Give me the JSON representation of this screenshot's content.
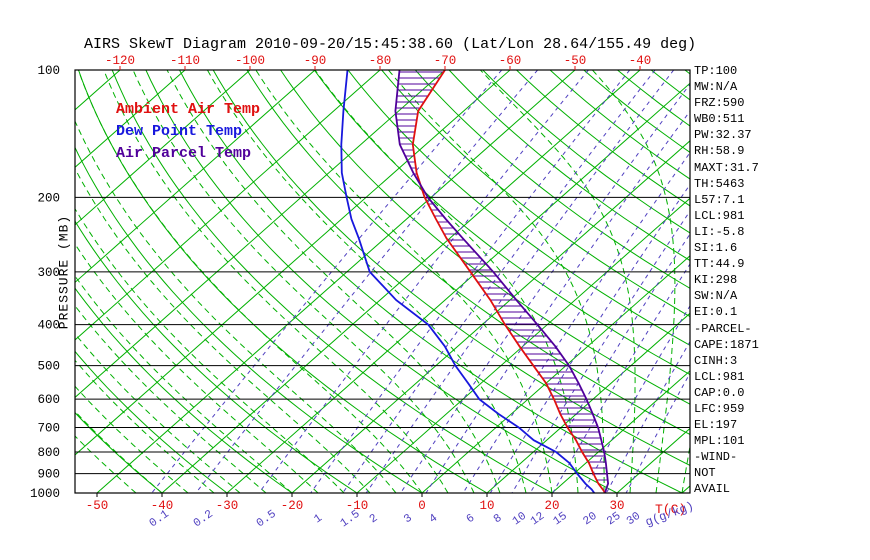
{
  "title": "AIRS SkewT Diagram 2010-09-20/15:45:38.60 (Lat/Lon 28.64/155.49 deg)",
  "legend": [
    {
      "label": "Ambient Air Temp",
      "color": "#e01010"
    },
    {
      "label": "Dew Point Temp",
      "color": "#1818dd"
    },
    {
      "label": "Air Parcel Temp",
      "color": "#50009b"
    }
  ],
  "axes": {
    "pressure_title": "PRESSURE (MB)",
    "pressure_ticks": [
      100,
      200,
      300,
      400,
      500,
      600,
      700,
      800,
      900,
      1000
    ],
    "top_temp_ticks": [
      -120,
      -110,
      -100,
      -90,
      -80,
      -70,
      -60,
      -50,
      -40
    ],
    "bottom_temp_ticks": [
      -50,
      -40,
      -30,
      -20,
      -10,
      0,
      10,
      20,
      30
    ],
    "temp_unit": "T(C)",
    "mixing_unit": "g(g/kg)",
    "mixing_ratio_ticks": [
      0.1,
      0.2,
      0.5,
      1,
      1.5,
      2,
      3,
      4,
      6,
      8,
      10,
      12,
      15,
      20,
      25,
      30
    ]
  },
  "stats": [
    "TP:100",
    "MW:N/A",
    "FRZ:590",
    "WB0:511",
    "PW:32.37",
    "RH:58.9",
    "MAXT:31.7",
    "TH:5463",
    "L57:7.1",
    "LCL:981",
    "LI:-5.8",
    "SI:1.6",
    "TT:44.9",
    "KI:298",
    "SW:N/A",
    "EI:0.1",
    "-PARCEL-",
    "CAPE:1871",
    "CINH:3",
    "LCL:981",
    "CAP:0.0",
    "LFC:959",
    "EL:197",
    "MPL:101",
    "-WIND-",
    "NOT",
    "AVAIL"
  ],
  "colors": {
    "isotherm": "#00b000",
    "mixing": "#5040c0",
    "ambient": "#e01010",
    "dew": "#1818dd",
    "parcel": "#50009b",
    "axis": "#000000",
    "temp_label": "#e01010"
  },
  "chart_data": {
    "type": "line",
    "diagram": "skew-t log-p sounding",
    "x_axis": {
      "label": "Temperature (C)",
      "bottom_range": [
        -50,
        40
      ],
      "top_range": [
        -120,
        -40
      ]
    },
    "y_axis": {
      "label": "Pressure (MB)",
      "range": [
        1000,
        100
      ],
      "scale": "log"
    },
    "background_lines": {
      "isotherms_c": {
        "min": -160,
        "max": 40,
        "step": 10
      },
      "dry_adiabats_c": {
        "min": -40,
        "max": 190,
        "step": 10
      },
      "moist_adiabats_c": {
        "min": -44,
        "max": 40,
        "step": 4
      },
      "mixing_ratio_g_kg": [
        0.1,
        0.2,
        0.5,
        1,
        1.5,
        2,
        3,
        4,
        6,
        8,
        10,
        12,
        15,
        20,
        25,
        30
      ]
    },
    "series": [
      {
        "name": "Ambient Air Temp",
        "color": "#e01010",
        "pressure": [
          100,
          125,
          150,
          175,
          200,
          225,
          250,
          300,
          350,
          400,
          450,
          500,
          550,
          600,
          650,
          700,
          750,
          800,
          850,
          900,
          950,
          981,
          1000
        ],
        "temp": [
          -70,
          -67,
          -62,
          -56.5,
          -51,
          -45.5,
          -40.5,
          -31,
          -23,
          -16.5,
          -10.5,
          -5,
          0,
          4,
          7.5,
          11,
          14.5,
          17.5,
          20.5,
          23,
          25.5,
          27.2,
          28.2
        ]
      },
      {
        "name": "Dew Point Temp",
        "color": "#1818dd",
        "pressure": [
          100,
          125,
          150,
          175,
          200,
          225,
          250,
          300,
          350,
          400,
          450,
          500,
          550,
          600,
          650,
          700,
          750,
          800,
          850,
          900,
          950,
          981,
          1000
        ],
        "temp": [
          -85,
          -78.5,
          -73,
          -68,
          -63,
          -58.5,
          -54,
          -46.5,
          -37.5,
          -28.3,
          -22,
          -17,
          -12,
          -7.5,
          -2,
          3.5,
          8,
          13.5,
          17.5,
          20.5,
          23.5,
          25.5,
          26.5
        ]
      },
      {
        "name": "Air Parcel Temp",
        "color": "#50009b",
        "pressure": [
          100,
          125,
          150,
          175,
          200,
          225,
          250,
          300,
          350,
          400,
          450,
          500,
          550,
          600,
          650,
          700,
          750,
          800,
          850,
          900,
          950,
          981,
          1000
        ],
        "temp": [
          -77,
          -70.5,
          -64,
          -57,
          -50.5,
          -44,
          -38,
          -27.5,
          -19,
          -11.5,
          -5,
          0.5,
          5,
          9,
          12.5,
          15.7,
          18.4,
          20.9,
          23.1,
          25.1,
          27,
          27.7,
          28.2
        ]
      }
    ],
    "hatch": {
      "top_mb": 101,
      "bottom_mb": 959,
      "meaning": "CAPE/parcel-ambient area"
    }
  }
}
